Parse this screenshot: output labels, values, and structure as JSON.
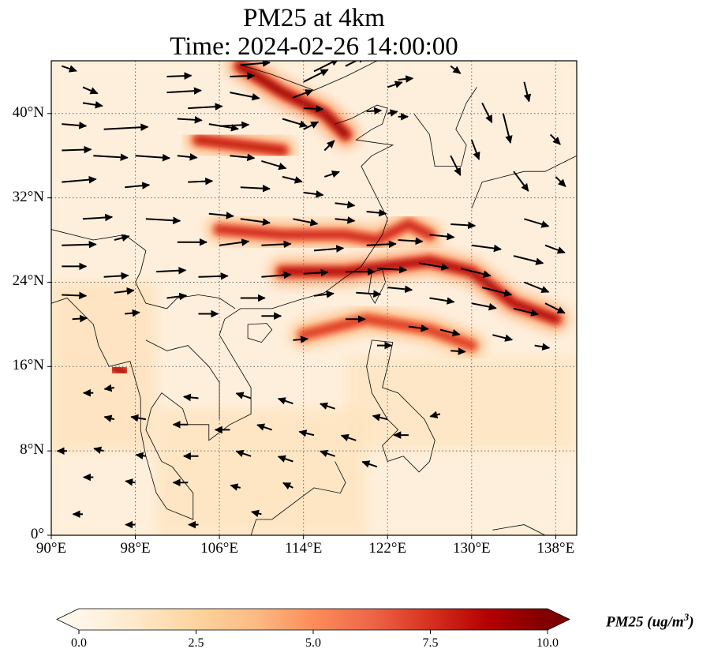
{
  "title": {
    "line1": "PM25 at 4km",
    "line2": "Time: 2024-02-26 14:00:00"
  },
  "map": {
    "projection": "PlateCarree",
    "lon_range": [
      90,
      140
    ],
    "lat_range": [
      0,
      45
    ],
    "gridlines": "dotted",
    "x_ticks": [
      {
        "value": 90,
        "label": "90°E"
      },
      {
        "value": 98,
        "label": "98°E"
      },
      {
        "value": 106,
        "label": "106°E"
      },
      {
        "value": 114,
        "label": "114°E"
      },
      {
        "value": 122,
        "label": "122°E"
      },
      {
        "value": 130,
        "label": "130°E"
      },
      {
        "value": 138,
        "label": "138°E"
      }
    ],
    "y_ticks": [
      {
        "value": 0,
        "label": "0°"
      },
      {
        "value": 8,
        "label": "8°N"
      },
      {
        "value": 16,
        "label": "16°N"
      },
      {
        "value": 24,
        "label": "24°N"
      },
      {
        "value": 32,
        "label": "32°N"
      },
      {
        "value": 40,
        "label": "40°N"
      }
    ]
  },
  "chart_data": {
    "type": "heatmap",
    "variable": "PM25",
    "level": "4km",
    "time": "2024-02-26 14:00:00",
    "colormap": "OrRd",
    "colorbar": {
      "label_main": "PM25 (ug/m",
      "label_sup": "3",
      "label_end": ")",
      "range": [
        0,
        10
      ],
      "extend": "both",
      "ticks": [
        {
          "value": 0,
          "label": "0.0"
        },
        {
          "value": 2.5,
          "label": "2.5"
        },
        {
          "value": 5,
          "label": "5.0"
        },
        {
          "value": 7.5,
          "label": "7.5"
        },
        {
          "value": 10,
          "label": "10.0"
        }
      ],
      "colors": [
        "#fff7ec",
        "#fee8c8",
        "#fdd49e",
        "#fdbb84",
        "#fc8d59",
        "#ef6548",
        "#d7301f",
        "#b30000",
        "#7f0000"
      ]
    },
    "plumes": [
      {
        "name": "north-china-plume",
        "path": [
          [
            108,
            44.5
          ],
          [
            112,
            42
          ],
          [
            116,
            40
          ],
          [
            118,
            38
          ]
        ],
        "peak": 9.5
      },
      {
        "name": "inner-plume-38n",
        "path": [
          [
            104,
            37.5
          ],
          [
            108,
            37
          ],
          [
            112,
            36.5
          ]
        ],
        "peak": 8.5
      },
      {
        "name": "yangtze-plume",
        "path": [
          [
            106,
            29
          ],
          [
            112,
            28.5
          ],
          [
            118,
            28.5
          ],
          [
            121,
            28
          ],
          [
            124,
            29.5
          ],
          [
            126,
            28.5
          ]
        ],
        "peak": 8.0
      },
      {
        "name": "east-china-sea-plume",
        "path": [
          [
            112,
            25
          ],
          [
            118,
            25
          ],
          [
            122,
            25.5
          ],
          [
            126,
            26
          ],
          [
            130,
            25
          ],
          [
            134,
            22
          ],
          [
            138,
            20.5
          ]
        ],
        "peak": 9.0
      },
      {
        "name": "south-china-sea-plume",
        "path": [
          [
            114,
            19
          ],
          [
            120,
            20.5
          ],
          [
            126,
            19.5
          ],
          [
            130,
            18
          ]
        ],
        "peak": 7.5
      },
      {
        "name": "myanmar-hotspot",
        "path": [
          [
            96,
            15.8
          ],
          [
            97,
            15.5
          ]
        ],
        "peak": 9.0
      }
    ],
    "wind_vectors": [
      {
        "lon": 91,
        "lat": 44.5,
        "u": 3,
        "v": -1
      },
      {
        "lon": 93,
        "lat": 42.5,
        "u": 3,
        "v": -1.3
      },
      {
        "lon": 93,
        "lat": 41,
        "u": 4,
        "v": -0.6
      },
      {
        "lon": 91,
        "lat": 39,
        "u": 5,
        "v": -0.4
      },
      {
        "lon": 95,
        "lat": 38.5,
        "u": 9,
        "v": 0.5
      },
      {
        "lon": 101,
        "lat": 43.5,
        "u": 5,
        "v": 0.2
      },
      {
        "lon": 101,
        "lat": 42,
        "u": 7,
        "v": 0.4
      },
      {
        "lon": 103,
        "lat": 40.5,
        "u": 7,
        "v": 0.4
      },
      {
        "lon": 102,
        "lat": 39.5,
        "u": 5,
        "v": -0.3
      },
      {
        "lon": 107,
        "lat": 43.5,
        "u": 5,
        "v": 0.2
      },
      {
        "lon": 107,
        "lat": 42,
        "u": 6,
        "v": -1.2
      },
      {
        "lon": 108,
        "lat": 44.6,
        "u": 6,
        "v": 0.5
      },
      {
        "lon": 105,
        "lat": 39,
        "u": 6,
        "v": -1.0
      },
      {
        "lon": 106,
        "lat": 38.8,
        "u": 6,
        "v": 0.3
      },
      {
        "lon": 113,
        "lat": 41.5,
        "u": 4,
        "v": 1.5
      },
      {
        "lon": 114,
        "lat": 43,
        "u": 5,
        "v": 2.5
      },
      {
        "lon": 115,
        "lat": 44,
        "u": 5,
        "v": 2.5
      },
      {
        "lon": 118,
        "lat": 44.5,
        "u": 4,
        "v": 2
      },
      {
        "lon": 112,
        "lat": 39.5,
        "u": 5,
        "v": -1.5
      },
      {
        "lon": 114,
        "lat": 38.5,
        "u": 3,
        "v": 1.5
      },
      {
        "lon": 114,
        "lat": 40.5,
        "u": 4,
        "v": -0.2
      },
      {
        "lon": 122,
        "lat": 42.5,
        "u": 3,
        "v": 1
      },
      {
        "lon": 123,
        "lat": 43.2,
        "u": 3,
        "v": 0.3
      },
      {
        "lon": 120,
        "lat": 40.2,
        "u": 3,
        "v": 0.2
      },
      {
        "lon": 122,
        "lat": 40,
        "u": 2,
        "v": 0.4
      },
      {
        "lon": 123,
        "lat": 39.7,
        "u": 2,
        "v": 0
      },
      {
        "lon": 128,
        "lat": 44.5,
        "u": 2,
        "v": -1.5
      },
      {
        "lon": 131,
        "lat": 41,
        "u": 2,
        "v": -4
      },
      {
        "lon": 133,
        "lat": 40,
        "u": 1.5,
        "v": -6
      },
      {
        "lon": 135,
        "lat": 43,
        "u": 1,
        "v": -4
      },
      {
        "lon": 137.5,
        "lat": 38,
        "u": 2,
        "v": -2
      },
      {
        "lon": 128,
        "lat": 36,
        "u": 2,
        "v": -4
      },
      {
        "lon": 130,
        "lat": 37.5,
        "u": 1.5,
        "v": -4
      },
      {
        "lon": 134,
        "lat": 34.5,
        "u": 3,
        "v": -4
      },
      {
        "lon": 138,
        "lat": 34,
        "u": 2,
        "v": -2
      },
      {
        "lon": 91,
        "lat": 36.5,
        "u": 6,
        "v": 0.2
      },
      {
        "lon": 94,
        "lat": 36,
        "u": 7,
        "v": -0.4
      },
      {
        "lon": 98,
        "lat": 36,
        "u": 7,
        "v": -0.5
      },
      {
        "lon": 102,
        "lat": 36,
        "u": 4,
        "v": -0.4
      },
      {
        "lon": 107,
        "lat": 36,
        "u": 5,
        "v": -0.5
      },
      {
        "lon": 110,
        "lat": 35.5,
        "u": 5,
        "v": -1.5
      },
      {
        "lon": 112,
        "lat": 34,
        "u": 4,
        "v": -1
      },
      {
        "lon": 116,
        "lat": 34,
        "u": 3,
        "v": 1
      },
      {
        "lon": 116,
        "lat": 36.5,
        "u": 2,
        "v": 2
      },
      {
        "lon": 91,
        "lat": 33.5,
        "u": 7,
        "v": 0.6
      },
      {
        "lon": 97,
        "lat": 33,
        "u": 5,
        "v": 0.5
      },
      {
        "lon": 103,
        "lat": 33.5,
        "u": 5,
        "v": 0.2
      },
      {
        "lon": 108,
        "lat": 33,
        "u": 6,
        "v": -0.3
      },
      {
        "lon": 114,
        "lat": 32.5,
        "u": 4,
        "v": -0.5
      },
      {
        "lon": 117,
        "lat": 31.5,
        "u": 4,
        "v": -0.5
      },
      {
        "lon": 93,
        "lat": 30,
        "u": 6,
        "v": 0.4
      },
      {
        "lon": 99,
        "lat": 30,
        "u": 7,
        "v": -0.4
      },
      {
        "lon": 105,
        "lat": 30.5,
        "u": 5,
        "v": -0.5
      },
      {
        "lon": 108,
        "lat": 30,
        "u": 6,
        "v": -0.8
      },
      {
        "lon": 113,
        "lat": 30,
        "u": 5,
        "v": -1
      },
      {
        "lon": 117,
        "lat": 30,
        "u": 4,
        "v": -0.4
      },
      {
        "lon": 120,
        "lat": 30.7,
        "u": 4,
        "v": -0.4
      },
      {
        "lon": 91,
        "lat": 27.5,
        "u": 7,
        "v": 0.2
      },
      {
        "lon": 96,
        "lat": 28,
        "u": 3,
        "v": 0.8
      },
      {
        "lon": 102,
        "lat": 27.8,
        "u": 6,
        "v": 0
      },
      {
        "lon": 106,
        "lat": 27.5,
        "u": 6,
        "v": 0.8
      },
      {
        "lon": 110,
        "lat": 27.5,
        "u": 6,
        "v": 0.3
      },
      {
        "lon": 115,
        "lat": 27,
        "u": 6,
        "v": 0.5
      },
      {
        "lon": 120,
        "lat": 27.5,
        "u": 6,
        "v": 0.3
      },
      {
        "lon": 123,
        "lat": 28,
        "u": 5,
        "v": -0.3
      },
      {
        "lon": 126,
        "lat": 28.5,
        "u": 5,
        "v": -0.5
      },
      {
        "lon": 128,
        "lat": 29.5,
        "u": 5,
        "v": -0.3
      },
      {
        "lon": 130,
        "lat": 27.5,
        "u": 6,
        "v": -0.8
      },
      {
        "lon": 134,
        "lat": 26.5,
        "u": 6,
        "v": -1.5
      },
      {
        "lon": 135,
        "lat": 30,
        "u": 5,
        "v": -1.5
      },
      {
        "lon": 137,
        "lat": 27.5,
        "u": 4,
        "v": -1.5
      },
      {
        "lon": 91,
        "lat": 25.5,
        "u": 5,
        "v": 0
      },
      {
        "lon": 95,
        "lat": 24.5,
        "u": 5,
        "v": 0.3
      },
      {
        "lon": 100,
        "lat": 25,
        "u": 6,
        "v": 0.3
      },
      {
        "lon": 104,
        "lat": 24.5,
        "u": 6,
        "v": 0.2
      },
      {
        "lon": 110,
        "lat": 24.5,
        "u": 6,
        "v": 0.5
      },
      {
        "lon": 114,
        "lat": 24.8,
        "u": 5,
        "v": 0.3
      },
      {
        "lon": 118,
        "lat": 25,
        "u": 6,
        "v": 0
      },
      {
        "lon": 121,
        "lat": 25.3,
        "u": 6,
        "v": -0.3
      },
      {
        "lon": 125,
        "lat": 25.8,
        "u": 6,
        "v": -1
      },
      {
        "lon": 129,
        "lat": 25.3,
        "u": 6,
        "v": -1.5
      },
      {
        "lon": 131,
        "lat": 23.5,
        "u": 6,
        "v": -1.5
      },
      {
        "lon": 135,
        "lat": 24,
        "u": 5,
        "v": -2
      },
      {
        "lon": 137,
        "lat": 22,
        "u": 4,
        "v": -2
      },
      {
        "lon": 91,
        "lat": 22.8,
        "u": 5,
        "v": -0.2
      },
      {
        "lon": 96,
        "lat": 23,
        "u": 4,
        "v": 0.5
      },
      {
        "lon": 101,
        "lat": 22.5,
        "u": 4,
        "v": 0.5
      },
      {
        "lon": 108,
        "lat": 22.5,
        "u": 5,
        "v": 0
      },
      {
        "lon": 115,
        "lat": 22.7,
        "u": 4,
        "v": 0.5
      },
      {
        "lon": 119,
        "lat": 23,
        "u": 5,
        "v": -0.3
      },
      {
        "lon": 122,
        "lat": 23.5,
        "u": 5,
        "v": -0.5
      },
      {
        "lon": 126,
        "lat": 22.5,
        "u": 5,
        "v": -0.8
      },
      {
        "lon": 130,
        "lat": 22,
        "u": 5,
        "v": -1
      },
      {
        "lon": 134,
        "lat": 21.5,
        "u": 5,
        "v": -1.2
      },
      {
        "lon": 92,
        "lat": 20.5,
        "u": 3,
        "v": 0.2
      },
      {
        "lon": 97,
        "lat": 21,
        "u": 3,
        "v": 0.3
      },
      {
        "lon": 104,
        "lat": 21,
        "u": 4,
        "v": 0
      },
      {
        "lon": 110,
        "lat": 20.8,
        "u": 4,
        "v": 0
      },
      {
        "lon": 118,
        "lat": 20.5,
        "u": 4,
        "v": 0
      },
      {
        "lon": 124,
        "lat": 19.8,
        "u": 4,
        "v": -0.5
      },
      {
        "lon": 127,
        "lat": 19.5,
        "u": 4,
        "v": -1
      },
      {
        "lon": 132,
        "lat": 19,
        "u": 4,
        "v": -1
      },
      {
        "lon": 136,
        "lat": 18,
        "u": 3,
        "v": -0.5
      },
      {
        "lon": 113,
        "lat": 18.5,
        "u": 3,
        "v": 0.3
      },
      {
        "lon": 121,
        "lat": 18,
        "u": 3,
        "v": 0
      },
      {
        "lon": 128,
        "lat": 17.5,
        "u": 3,
        "v": -0.2
      },
      {
        "lon": 104,
        "lat": 13,
        "u": -3,
        "v": 0.3
      },
      {
        "lon": 109,
        "lat": 13,
        "u": -3,
        "v": 1
      },
      {
        "lon": 113,
        "lat": 12.5,
        "u": -3,
        "v": 1
      },
      {
        "lon": 117,
        "lat": 12,
        "u": -3,
        "v": 1
      },
      {
        "lon": 122,
        "lat": 11,
        "u": -3,
        "v": 0.7
      },
      {
        "lon": 127,
        "lat": 11.5,
        "u": -2,
        "v": -0.5
      },
      {
        "lon": 99,
        "lat": 11,
        "u": -3,
        "v": 0.5
      },
      {
        "lon": 103,
        "lat": 10.5,
        "u": -3,
        "v": 0
      },
      {
        "lon": 107,
        "lat": 10,
        "u": -3,
        "v": 0
      },
      {
        "lon": 111,
        "lat": 10,
        "u": -3,
        "v": 1
      },
      {
        "lon": 115,
        "lat": 9.5,
        "u": -3,
        "v": 0.7
      },
      {
        "lon": 119,
        "lat": 9,
        "u": -3,
        "v": 1
      },
      {
        "lon": 124,
        "lat": 9.5,
        "u": -3,
        "v": 0
      },
      {
        "lon": 91.5,
        "lat": 8,
        "u": -2,
        "v": 0
      },
      {
        "lon": 95,
        "lat": 8,
        "u": -2,
        "v": 0.5
      },
      {
        "lon": 99,
        "lat": 7.5,
        "u": -2,
        "v": 0.3
      },
      {
        "lon": 104,
        "lat": 7.5,
        "u": -3,
        "v": 0
      },
      {
        "lon": 109,
        "lat": 7.5,
        "u": -3,
        "v": 1
      },
      {
        "lon": 113,
        "lat": 7,
        "u": -3,
        "v": 1
      },
      {
        "lon": 117,
        "lat": 7.5,
        "u": -3,
        "v": 1
      },
      {
        "lon": 121,
        "lat": 6.5,
        "u": -3,
        "v": 1
      },
      {
        "lon": 94,
        "lat": 5.5,
        "u": -2,
        "v": 0
      },
      {
        "lon": 98,
        "lat": 5,
        "u": -2,
        "v": 0.3
      },
      {
        "lon": 103,
        "lat": 5,
        "u": -3,
        "v": 0
      },
      {
        "lon": 108,
        "lat": 4.5,
        "u": -2,
        "v": 0.5
      },
      {
        "lon": 113,
        "lat": 4.5,
        "u": -2,
        "v": 1
      },
      {
        "lon": 93,
        "lat": 2,
        "u": -2,
        "v": 0
      },
      {
        "lon": 98,
        "lat": 1,
        "u": -2,
        "v": 0
      },
      {
        "lon": 104,
        "lat": 1,
        "u": -2,
        "v": 0
      },
      {
        "lon": 110,
        "lat": 2,
        "u": -2,
        "v": 0.5
      },
      {
        "lon": 94,
        "lat": 13.5,
        "u": -2,
        "v": 0
      },
      {
        "lon": 96,
        "lat": 11,
        "u": -2,
        "v": 0.5
      },
      {
        "lon": 96,
        "lat": 14,
        "u": -2,
        "v": -0.3
      }
    ]
  }
}
